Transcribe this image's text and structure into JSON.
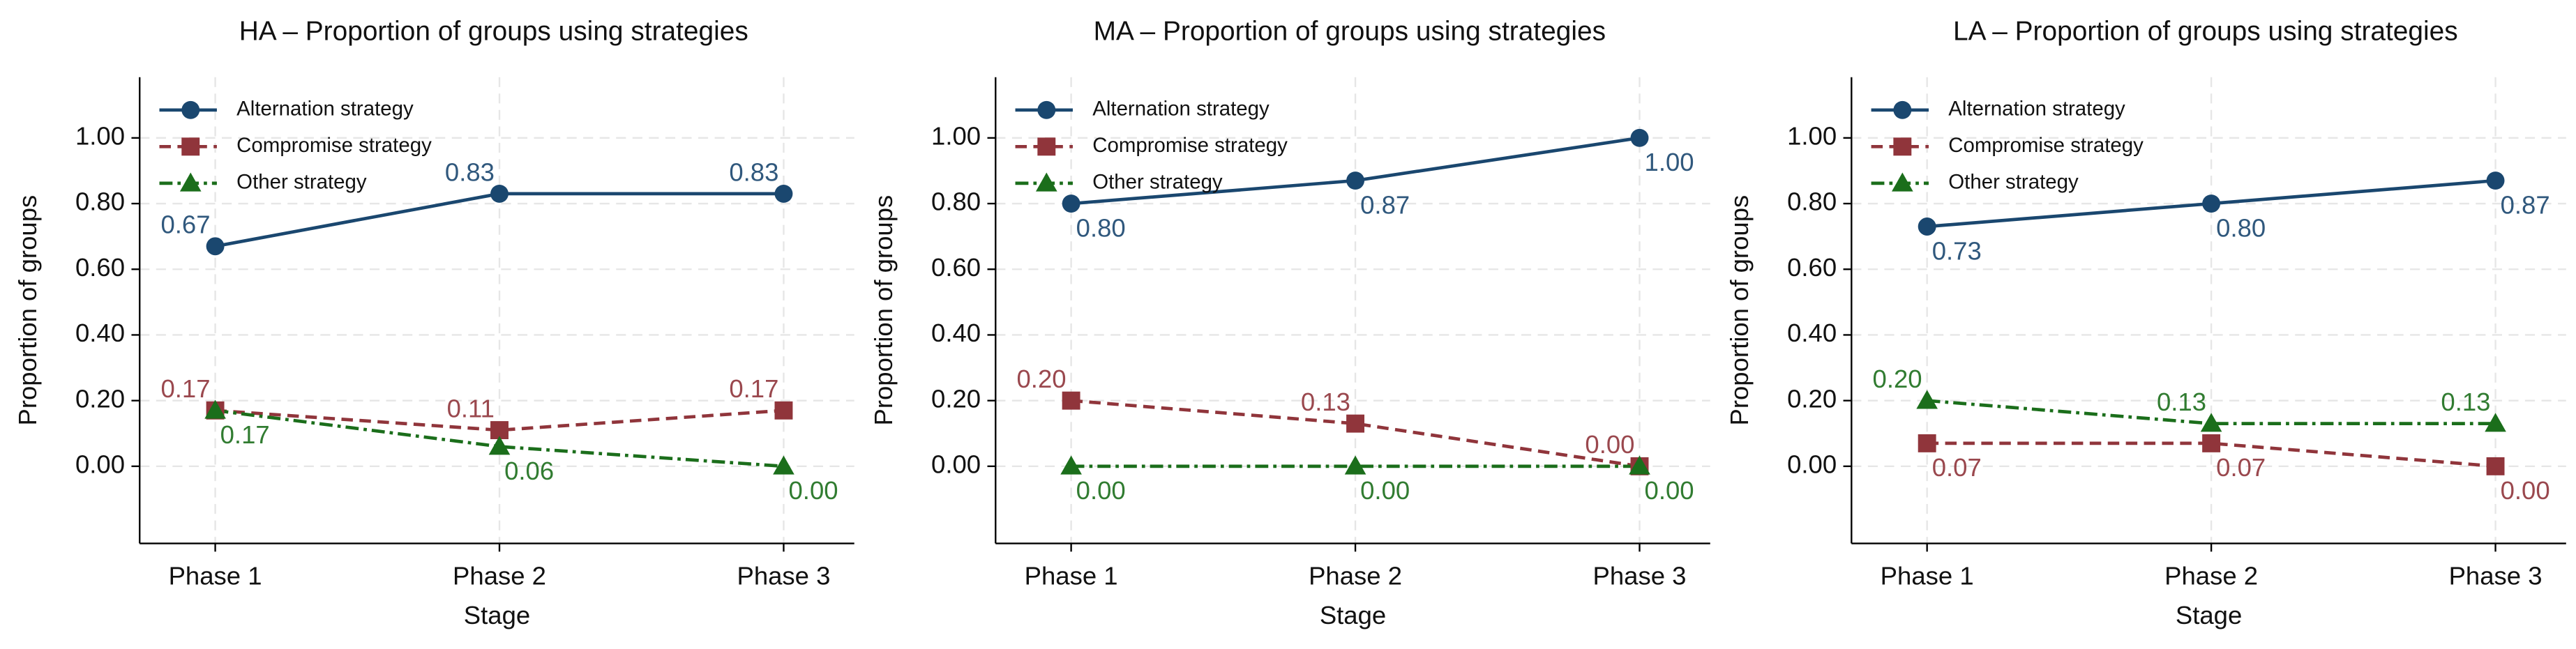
{
  "chart_data": [
    {
      "type": "line",
      "title": "HA – Proportion of groups using strategies",
      "x_label": "Stage",
      "y_label": "Proportion of groups",
      "categories": [
        "Phase 1",
        "Phase 2",
        "Phase 3"
      ],
      "ylim": [
        -0.235,
        1.185
      ],
      "yticks": [
        {
          "value": 0,
          "label": "0.00"
        },
        {
          "value": 0.2,
          "label": "0.20"
        },
        {
          "value": 0.4,
          "label": "0.40"
        },
        {
          "value": 0.6,
          "label": "0.60"
        },
        {
          "value": 0.8,
          "label": "0.80"
        },
        {
          "value": 1,
          "label": "1.00"
        }
      ],
      "grid": true,
      "legend": "upper left",
      "series": [
        {
          "name": "Alternation strategy",
          "color": "#1a476f",
          "values": [
            0.67,
            0.83,
            0.83
          ],
          "value_labels": [
            "0.67",
            "0.83",
            "0.83"
          ]
        },
        {
          "name": "Compromise strategy",
          "color": "#90353b",
          "values": [
            0.17,
            0.11,
            0.17
          ],
          "value_labels": [
            "0.17",
            "0.11",
            "0.17"
          ]
        },
        {
          "name": "Other strategy",
          "color": "#1b6e1b",
          "values": [
            0.17,
            0.06,
            0
          ],
          "value_labels": [
            "0.17",
            "0.06",
            "0.00"
          ]
        }
      ]
    },
    {
      "type": "line",
      "title": "MA – Proportion of groups using strategies",
      "x_label": "Stage",
      "y_label": "Proportion of groups",
      "categories": [
        "Phase 1",
        "Phase 2",
        "Phase 3"
      ],
      "ylim": [
        -0.235,
        1.185
      ],
      "yticks": [
        {
          "value": 0,
          "label": "0.00"
        },
        {
          "value": 0.2,
          "label": "0.20"
        },
        {
          "value": 0.4,
          "label": "0.40"
        },
        {
          "value": 0.6,
          "label": "0.60"
        },
        {
          "value": 0.8,
          "label": "0.80"
        },
        {
          "value": 1,
          "label": "1.00"
        }
      ],
      "grid": true,
      "legend": "upper left",
      "series": [
        {
          "name": "Alternation strategy",
          "color": "#1a476f",
          "values": [
            0.8,
            0.87,
            1
          ],
          "value_labels": [
            "0.80",
            "0.87",
            "1.00"
          ]
        },
        {
          "name": "Compromise strategy",
          "color": "#90353b",
          "values": [
            0.2,
            0.13,
            0
          ],
          "value_labels": [
            "0.20",
            "0.13",
            "0.00"
          ]
        },
        {
          "name": "Other strategy",
          "color": "#1b6e1b",
          "values": [
            0,
            0,
            0
          ],
          "value_labels": [
            "0.00",
            "0.00",
            "0.00"
          ]
        }
      ]
    },
    {
      "type": "line",
      "title": "LA – Proportion of groups using strategies",
      "x_label": "Stage",
      "y_label": "Proportion of groups",
      "categories": [
        "Phase 1",
        "Phase 2",
        "Phase 3"
      ],
      "ylim": [
        -0.235,
        1.185
      ],
      "yticks": [
        {
          "value": 0,
          "label": "0.00"
        },
        {
          "value": 0.2,
          "label": "0.20"
        },
        {
          "value": 0.4,
          "label": "0.40"
        },
        {
          "value": 0.6,
          "label": "0.60"
        },
        {
          "value": 0.8,
          "label": "0.80"
        },
        {
          "value": 1,
          "label": "1.00"
        }
      ],
      "grid": true,
      "legend": "upper left",
      "series": [
        {
          "name": "Alternation strategy",
          "color": "#1a476f",
          "values": [
            0.73,
            0.8,
            0.87
          ],
          "value_labels": [
            "0.73",
            "0.80",
            "0.87"
          ]
        },
        {
          "name": "Compromise strategy",
          "color": "#90353b",
          "values": [
            0.07,
            0.07,
            0
          ],
          "value_labels": [
            "0.07",
            "0.07",
            "0.00"
          ]
        },
        {
          "name": "Other strategy",
          "color": "#1b6e1b",
          "values": [
            0.2,
            0.13,
            0.13
          ],
          "value_labels": [
            "0.20",
            "0.13",
            "0.13"
          ]
        }
      ]
    }
  ]
}
